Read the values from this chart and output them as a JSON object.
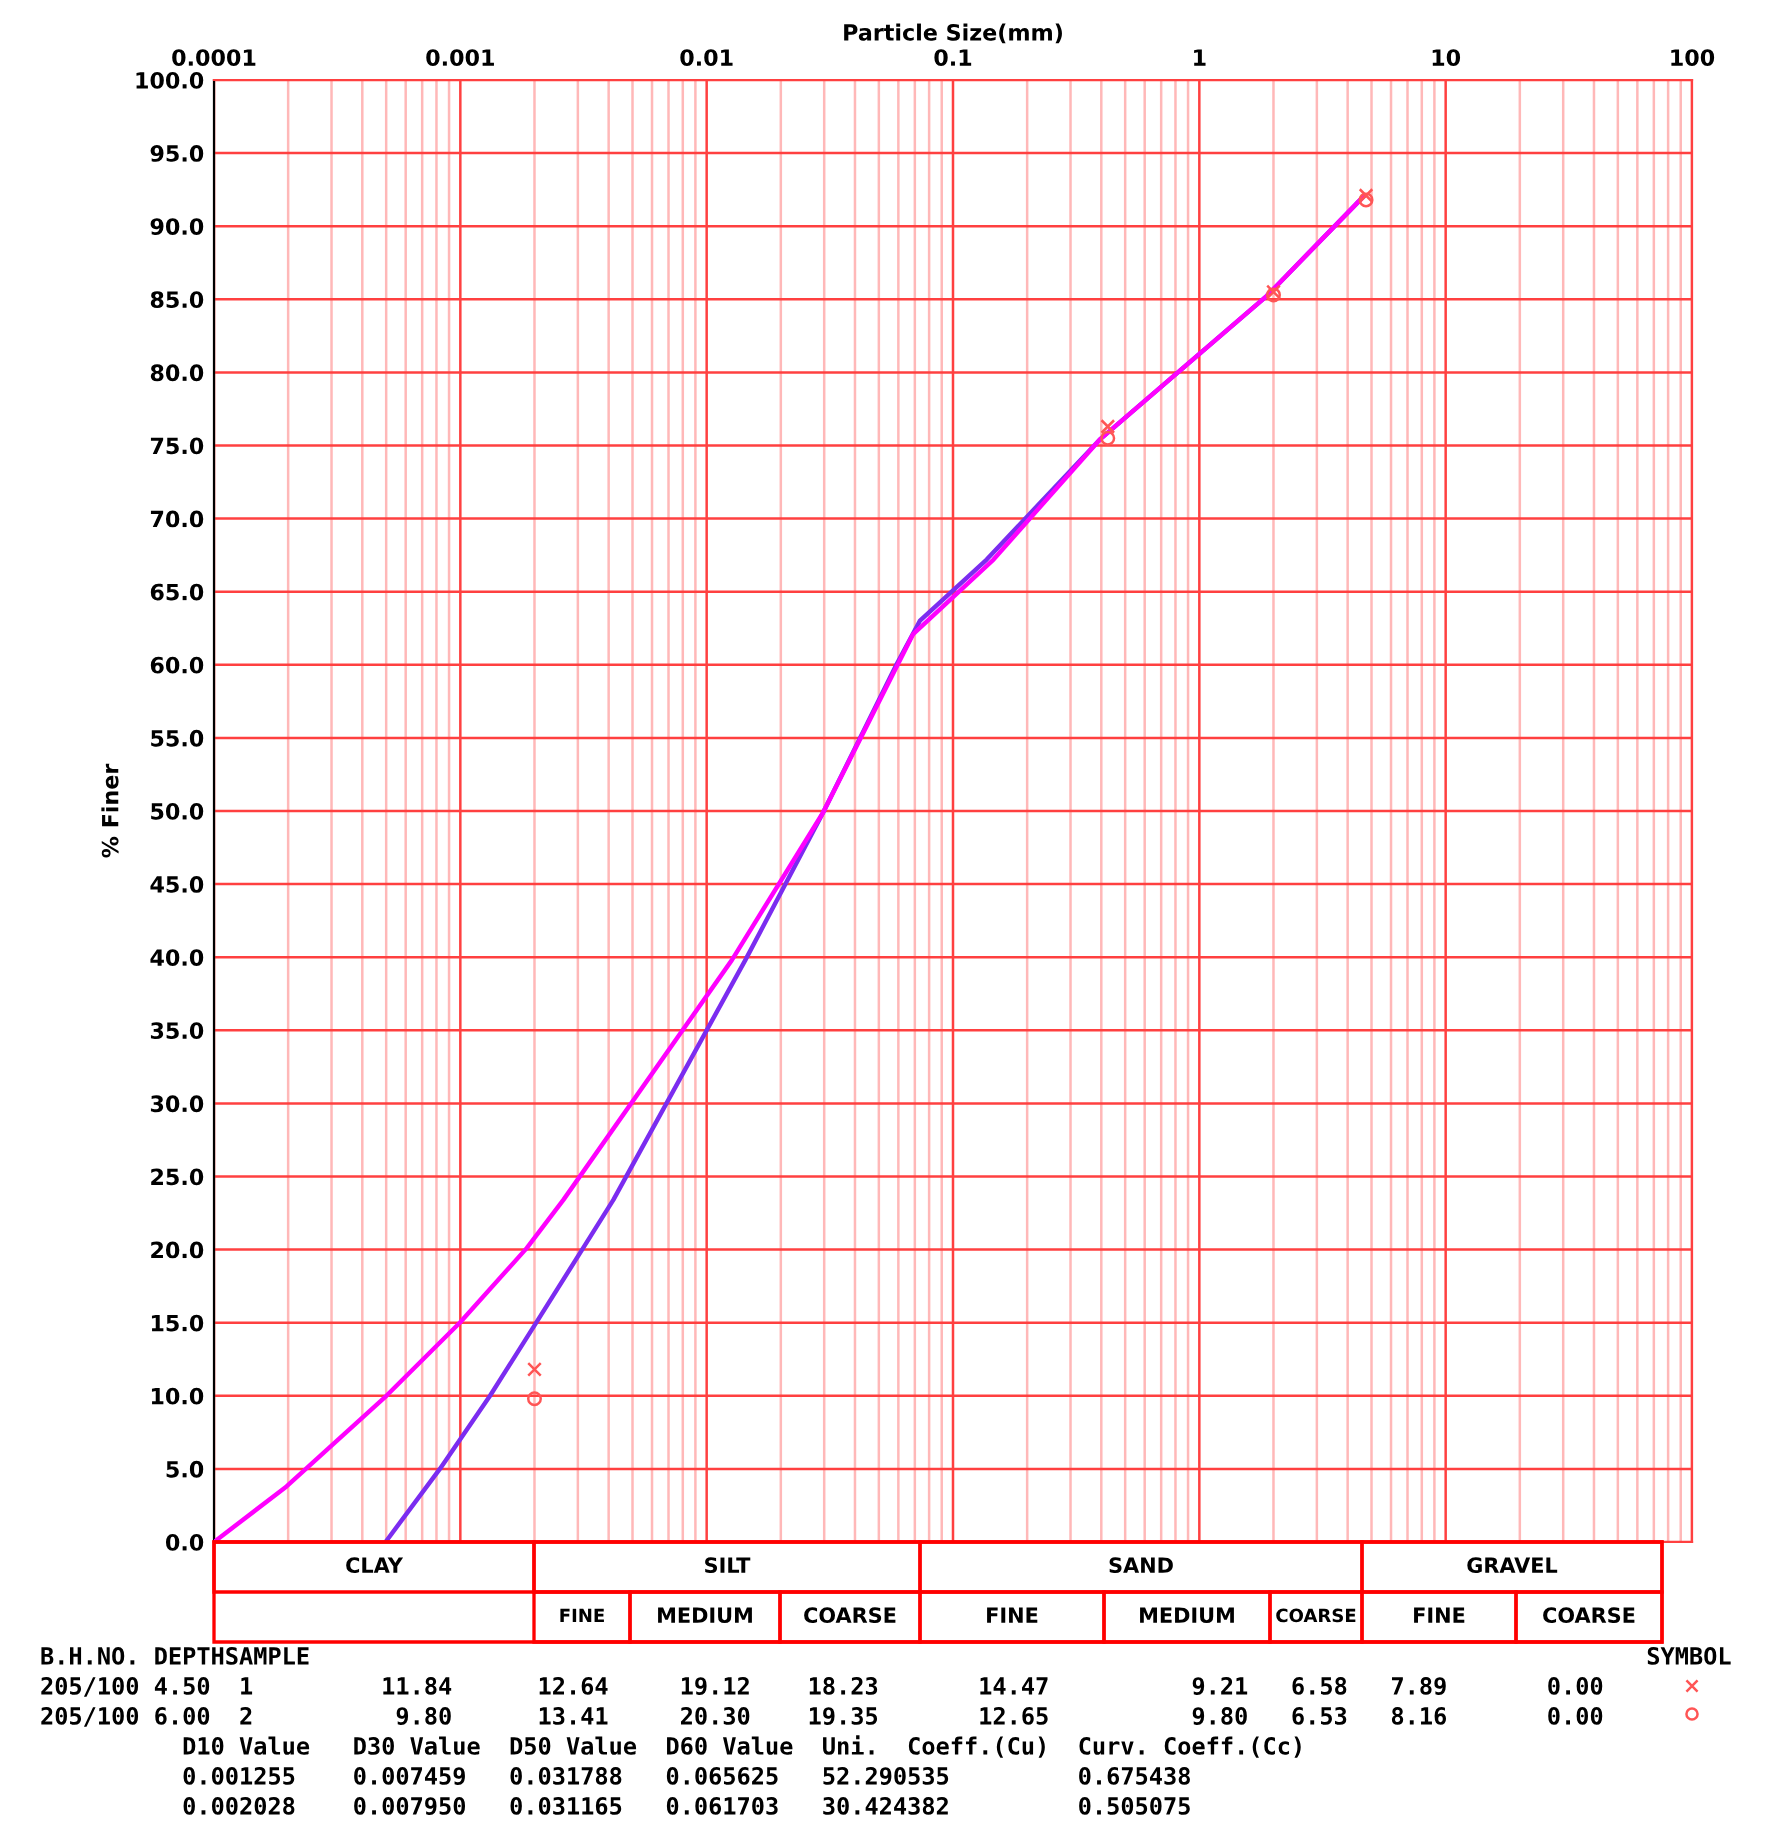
{
  "chart_data": {
    "type": "line",
    "xlabel": "Particle Size(mm)",
    "ylabel": "% Finer",
    "log": "x",
    "xlim": [
      0.0001,
      100
    ],
    "xticks": [
      0.0001,
      {
        "value": 0.0002,
        "label": null
      },
      {
        "value": 0.0003,
        "label": null
      },
      {
        "value": 0.0004,
        "label": null
      },
      {
        "value": 0.0005,
        "label": null
      },
      {
        "value": 0.0006,
        "label": null
      },
      {
        "value": 0.0007,
        "label": null
      },
      {
        "value": 0.0008,
        "label": null
      },
      {
        "value": 0.0009,
        "label": null
      },
      0.001,
      {
        "value": 0.002,
        "label": null
      },
      {
        "value": 0.003,
        "label": null
      },
      {
        "value": 0.004,
        "label": null
      },
      {
        "value": 0.005,
        "label": null
      },
      {
        "value": 0.006,
        "label": null
      },
      {
        "value": 0.007,
        "label": null
      },
      {
        "value": 0.008,
        "label": null
      },
      {
        "value": 0.009,
        "label": null
      },
      0.01,
      {
        "value": 0.02,
        "label": null
      },
      {
        "value": 0.03,
        "label": null
      },
      {
        "value": 0.04,
        "label": null
      },
      {
        "value": 0.05,
        "label": null
      },
      {
        "value": 0.06,
        "label": null
      },
      {
        "value": 0.07,
        "label": null
      },
      {
        "value": 0.08,
        "label": null
      },
      {
        "value": 0.09,
        "label": null
      },
      0.1,
      {
        "value": 0.2,
        "label": null
      },
      {
        "value": 0.3,
        "label": null
      },
      {
        "value": 0.4,
        "label": null
      },
      {
        "value": 0.5,
        "label": null
      },
      {
        "value": 0.6,
        "label": null
      },
      {
        "value": 0.7,
        "label": null
      },
      {
        "value": 0.8,
        "label": null
      },
      {
        "value": 0.9,
        "label": null
      },
      1,
      {
        "value": 2,
        "label": null
      },
      {
        "value": 3,
        "label": null
      },
      {
        "value": 4,
        "label": null
      },
      {
        "value": 5,
        "label": null
      },
      {
        "value": 6,
        "label": null
      },
      {
        "value": 7,
        "label": null
      },
      {
        "value": 8,
        "label": null
      },
      {
        "value": 9,
        "label": null
      },
      10,
      {
        "value": 20,
        "label": null
      },
      {
        "value": 30,
        "label": null
      },
      {
        "value": 40,
        "label": null
      },
      {
        "value": 50,
        "label": null
      },
      {
        "value": 60,
        "label": null
      },
      {
        "value": 70,
        "label": null
      },
      {
        "value": 80,
        "label": null
      },
      {
        "value": 90,
        "label": null
      },
      100
    ],
    "ylim": [
      0,
      100
    ],
    "yticks": [
      {
        "value": 0,
        "label": "0.0"
      },
      {
        "value": 5,
        "label": "5.0"
      },
      {
        "value": 10,
        "label": "10.0"
      },
      {
        "value": 15,
        "label": "15.0"
      },
      {
        "value": 20,
        "label": "20.0"
      },
      {
        "value": 25,
        "label": "25.0"
      },
      {
        "value": 30,
        "label": "30.0"
      },
      {
        "value": 35,
        "label": "35.0"
      },
      {
        "value": 40,
        "label": "40.0"
      },
      {
        "value": 45,
        "label": "45.0"
      },
      {
        "value": 50,
        "label": "50.0"
      },
      {
        "value": 55,
        "label": "55.0"
      },
      {
        "value": 60,
        "label": "60.0"
      },
      {
        "value": 65,
        "label": "65.0"
      },
      {
        "value": 70,
        "label": "70.0"
      },
      {
        "value": 75,
        "label": "75.0"
      },
      {
        "value": 80,
        "label": "80.0"
      },
      {
        "value": 85,
        "label": "85.0"
      },
      {
        "value": 90,
        "label": "90.0"
      },
      {
        "value": 95,
        "label": "95.0"
      },
      {
        "value": 100,
        "label": "100.0"
      }
    ],
    "grid": true,
    "line_style": "solid",
    "series": [
      {
        "color": "#7b2cf0",
        "x": [
          0.000497,
          0.000826,
          0.00132,
          0.00198,
          0.00315,
          0.00418,
          0.01435,
          0.0297,
          0.0589,
          0.0733,
          0.137,
          0.394,
          1.87,
          4.62
        ],
        "values": [
          0,
          5.0,
          10.0,
          14.7,
          20.1,
          23.4,
          39.8,
          49.9,
          60.0,
          63.0,
          67.2,
          75.4,
          85.2,
          92.0
        ]
      },
      {
        "color": "#ff00ff",
        "x": [
          0.0001,
          0.000197,
          0.000501,
          0.000995,
          0.00186,
          0.00262,
          0.01265,
          0.0297,
          0.0689,
          0.146,
          0.394,
          1.87,
          4.62
        ],
        "values": [
          0,
          3.8,
          10.0,
          15.0,
          20.1,
          23.4,
          39.8,
          49.9,
          62.1,
          67.2,
          75.4,
          85.2,
          92.0
        ]
      },
      {
        "type": "scatter",
        "color": "#ff5555",
        "marker": "cross",
        "x": [
          0.002,
          0.425,
          2,
          4.75
        ],
        "values": [
          11.8,
          76.3,
          85.5,
          92.1
        ]
      },
      {
        "type": "scatter",
        "color": "#ff5555",
        "marker": "circle",
        "x": [
          0.002,
          0.425,
          2,
          4.75
        ],
        "values": [
          9.8,
          75.5,
          85.3,
          91.8
        ]
      }
    ],
    "annotations": [
      "CLAY",
      "SILT",
      "SAND",
      "GRAVEL",
      "FINE",
      "MEDIUM",
      "COARSE",
      "FINE",
      "MEDIUM",
      "COARSE",
      "FINE",
      "COARSE",
      "B.H.NO. DEPTHSAMPLE                                                                                              SYMBOL",
      "205/100 4.50  1         11.84      12.64     19.12    18.23       14.47          9.21   6.58   7.89       0.00",
      "205/100 6.00  2          9.80      13.41     20.30    19.35       12.65          9.80   6.53   8.16       0.00",
      "          D10 Value   D30 Value  D50 Value  D60 Value  Uni.  Coeff.(Cu)  Curv. Coeff.(Cc)",
      "          0.001255    0.007459   0.031788   0.065625   52.290535         0.675438",
      "          0.002028    0.007950   0.031165   0.061703   30.424382         0.505075"
    ]
  }
}
